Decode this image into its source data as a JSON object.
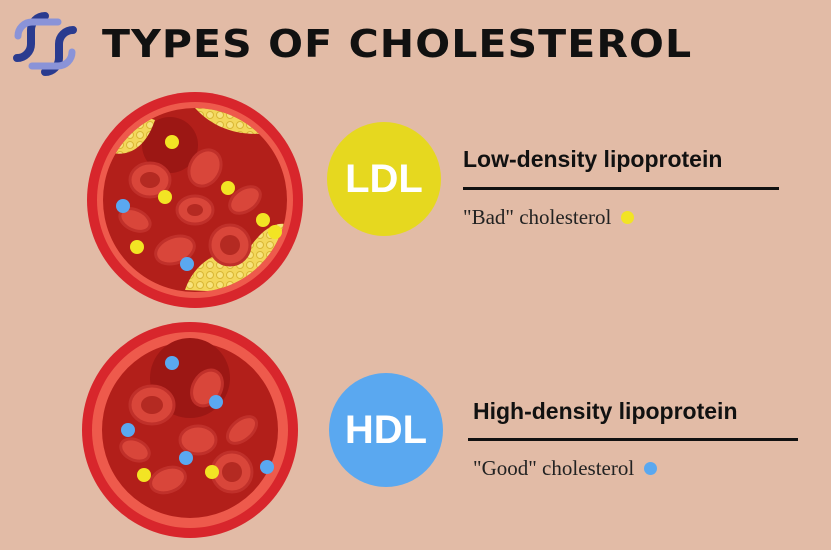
{
  "title": "TYPES OF CHOLESTEROL",
  "logo_icon": "medical-cross-logo-icon",
  "colors": {
    "background": "#e2bba6",
    "ldl": "#e6d81f",
    "hdl": "#5aa8f0",
    "vessel_outer": "#d8262c",
    "vessel_inner": "#b21f1a"
  },
  "ldl": {
    "abbr": "LDL",
    "name": "Low-density lipoprotein",
    "description": "\"Bad\" cholesterol",
    "marker_icon": "yellow-dot-icon"
  },
  "hdl": {
    "abbr": "HDL",
    "name": "High-density lipoprotein",
    "description": "\"Good\" cholesterol",
    "marker_icon": "blue-dot-icon"
  }
}
